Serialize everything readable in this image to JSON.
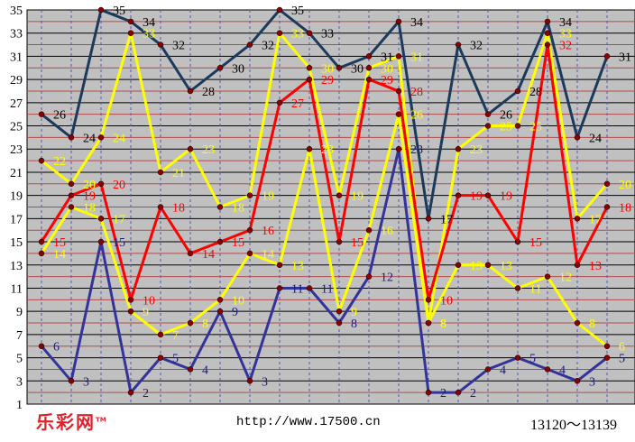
{
  "footer": {
    "brand": "乐彩网",
    "tm": "TM",
    "url": "http://www.17500.cn",
    "range": "13120～13139"
  },
  "chart_data": {
    "type": "line",
    "x": [
      1,
      2,
      3,
      4,
      5,
      6,
      7,
      8,
      9,
      10,
      11,
      12,
      13,
      14,
      15,
      16,
      17,
      18,
      19,
      20
    ],
    "yticks": [
      1,
      3,
      5,
      7,
      9,
      11,
      13,
      15,
      17,
      19,
      21,
      23,
      25,
      27,
      29,
      31,
      33,
      35
    ],
    "ylim": [
      1,
      35
    ],
    "grid": true,
    "background": "#c0c0c0",
    "series": [
      {
        "color": "#1b3a5c",
        "label_color": "#000000",
        "values": [
          26,
          24,
          35,
          34,
          32,
          28,
          30,
          32,
          35,
          33,
          30,
          31,
          34,
          17,
          32,
          26,
          28,
          34,
          24,
          31
        ]
      },
      {
        "color": "#ffff00",
        "label_color": "#ffff00",
        "values": [
          22,
          20,
          24,
          33,
          21,
          23,
          18,
          19,
          33,
          30,
          19,
          30,
          31,
          8,
          23,
          25,
          25,
          33,
          17,
          20
        ]
      },
      {
        "color": "#ff0000",
        "label_color": "#ff0000",
        "values": [
          15,
          19,
          20,
          10,
          18,
          14,
          15,
          16,
          27,
          29,
          15,
          29,
          28,
          10,
          19,
          19,
          15,
          32,
          13,
          18
        ]
      },
      {
        "color": "#ffff00",
        "label_color": "#ffff00",
        "values": [
          14,
          18,
          17,
          9,
          7,
          8,
          10,
          14,
          13,
          23,
          9,
          16,
          26,
          8,
          13,
          13,
          11,
          12,
          8,
          6
        ]
      },
      {
        "color": "#333399",
        "label_color": "#1a1a7a",
        "values": [
          6,
          3,
          15,
          2,
          5,
          4,
          9,
          3,
          11,
          11,
          8,
          12,
          23,
          2,
          2,
          4,
          5,
          4,
          3,
          5
        ]
      }
    ]
  }
}
